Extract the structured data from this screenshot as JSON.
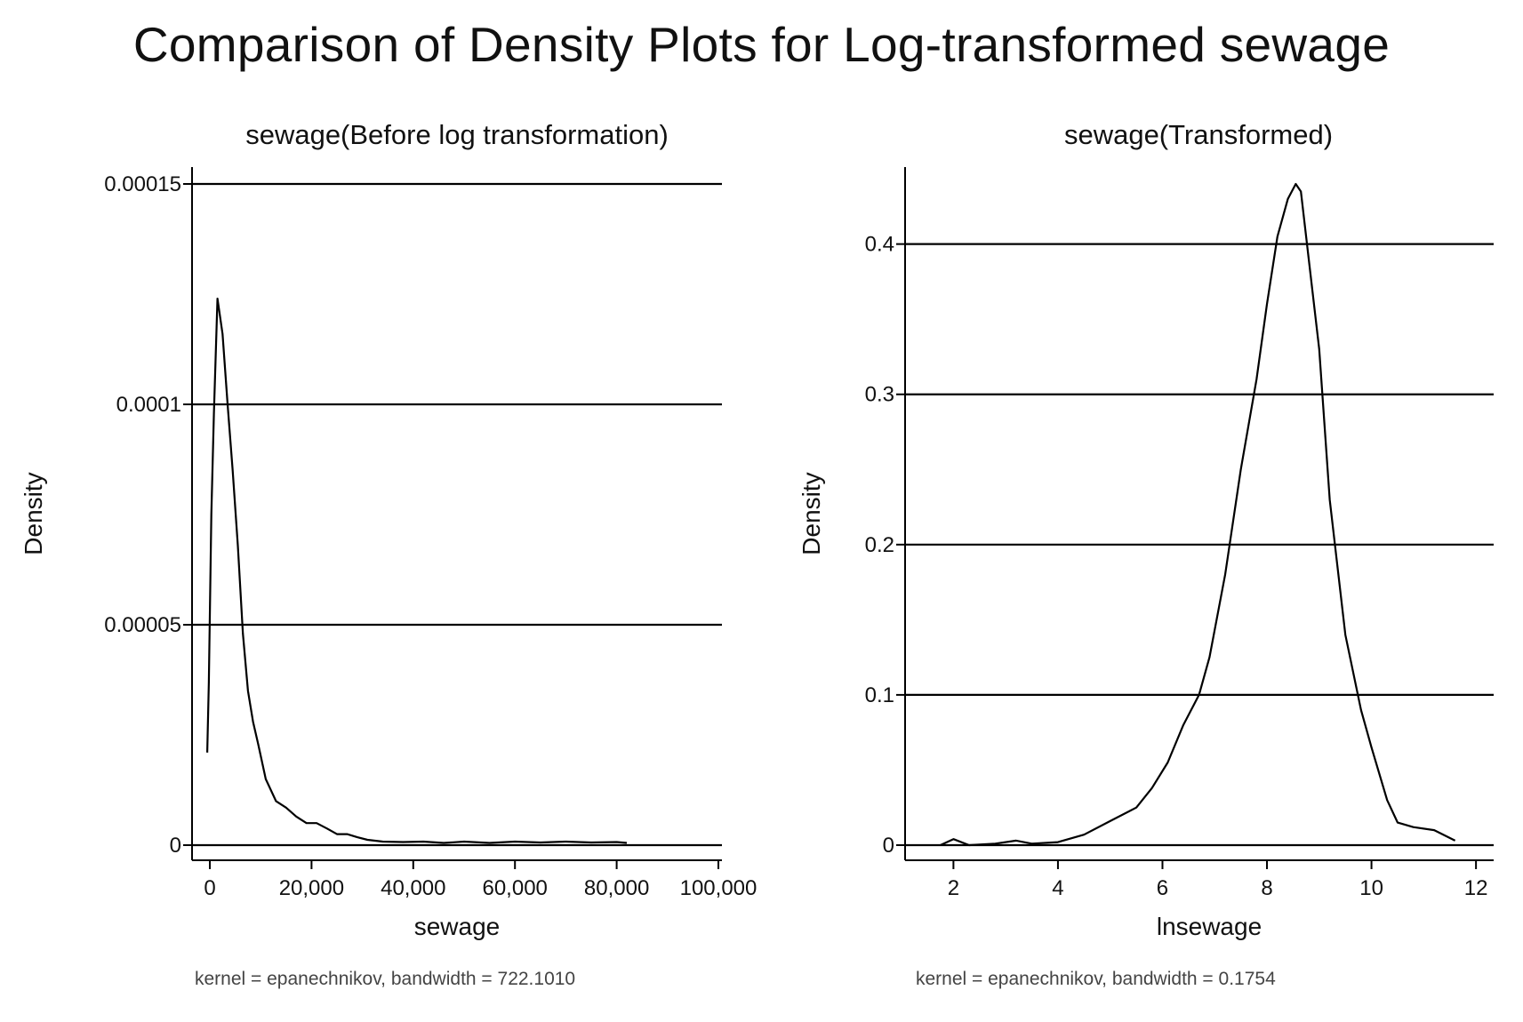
{
  "title": "Comparison of Density Plots for Log-transformed sewage",
  "colors": {
    "line": "#000000",
    "grid": "#000000",
    "text": "#111111",
    "note": "#444444"
  },
  "chart_data": [
    {
      "type": "line",
      "title": "sewage(Before log transformation)",
      "xlabel": "sewage",
      "ylabel": "Density",
      "note": "kernel = epanechnikov, bandwidth = 722.1010",
      "xlim": [
        0,
        100000
      ],
      "ylim": [
        0,
        0.00015
      ],
      "grid": true,
      "xticks": [
        0,
        20000,
        40000,
        60000,
        80000,
        100000
      ],
      "xtick_labels": [
        "0",
        "20,000",
        "40,000",
        "60,000",
        "80,000",
        "100,000"
      ],
      "yticks": [
        0,
        5e-05,
        0.0001,
        0.00015
      ],
      "ytick_labels": [
        "0",
        "0.00005",
        "0.0001",
        "0.00015"
      ],
      "series": [
        {
          "name": "density",
          "x": [
            -500,
            -200,
            300,
            800,
            1500,
            2500,
            3500,
            4500,
            5500,
            6500,
            7500,
            8500,
            9500,
            11000,
            13000,
            15000,
            17000,
            19000,
            21000,
            23000,
            25000,
            27000,
            29000,
            31000,
            34000,
            38000,
            42000,
            46000,
            50000,
            55000,
            60000,
            65000,
            70000,
            75000,
            80000,
            82000
          ],
          "y": [
            2.1e-05,
            3.7e-05,
            7.5e-05,
            9.8e-05,
            0.000124,
            0.000116,
            0.0001,
            8.5e-05,
            6.8e-05,
            4.8e-05,
            3.5e-05,
            2.8e-05,
            2.3e-05,
            1.5e-05,
            1e-05,
            8.5e-06,
            6.5e-06,
            5e-06,
            5e-06,
            3.8e-06,
            2.5e-06,
            2.5e-06,
            1.8e-06,
            1.2e-06,
            8e-07,
            7e-07,
            8e-07,
            5e-07,
            8e-07,
            5e-07,
            8e-07,
            6e-07,
            8e-07,
            6e-07,
            7e-07,
            5e-07
          ]
        }
      ]
    },
    {
      "type": "line",
      "title": "sewage(Transformed)",
      "xlabel": "lnsewage",
      "ylabel": "Density",
      "note": "kernel = epanechnikov, bandwidth = 0.1754",
      "xlim": [
        1.5,
        12.1
      ],
      "ylim": [
        0,
        0.44
      ],
      "grid": true,
      "xticks": [
        2,
        4,
        6,
        8,
        10,
        12
      ],
      "xtick_labels": [
        "2",
        "4",
        "6",
        "8",
        "10",
        "12"
      ],
      "yticks": [
        0,
        0.1,
        0.2,
        0.3,
        0.4
      ],
      "ytick_labels": [
        "0",
        "0.1",
        "0.2",
        "0.3",
        "0.4"
      ],
      "series": [
        {
          "name": "density",
          "x": [
            1.75,
            2.0,
            2.3,
            2.8,
            3.2,
            3.5,
            4.0,
            4.5,
            5.0,
            5.5,
            5.8,
            6.1,
            6.4,
            6.7,
            6.9,
            7.2,
            7.5,
            7.8,
            8.0,
            8.2,
            8.4,
            8.55,
            8.65,
            8.8,
            9.0,
            9.2,
            9.5,
            9.8,
            10.0,
            10.3,
            10.5,
            10.8,
            11.2,
            11.6
          ],
          "y": [
            0.0,
            0.004,
            0.0,
            0.001,
            0.003,
            0.001,
            0.002,
            0.007,
            0.016,
            0.025,
            0.038,
            0.055,
            0.08,
            0.1,
            0.125,
            0.18,
            0.25,
            0.31,
            0.36,
            0.405,
            0.43,
            0.44,
            0.435,
            0.39,
            0.33,
            0.23,
            0.14,
            0.09,
            0.065,
            0.03,
            0.015,
            0.012,
            0.01,
            0.003
          ]
        }
      ]
    }
  ]
}
